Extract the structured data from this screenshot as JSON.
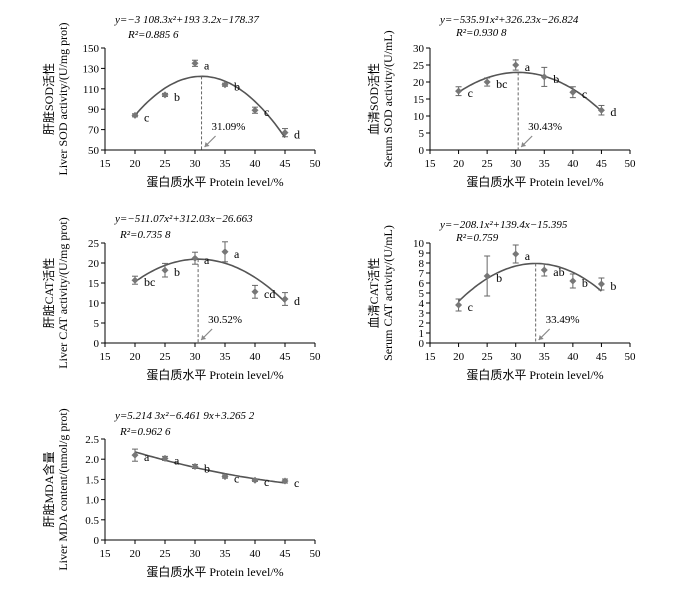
{
  "chart_data": [
    {
      "type": "scatter",
      "equation": "y=−3 108.3x²+193 3.2x−178.37",
      "r2_label": "R²=0.885 6",
      "optimum_label": "31.09%",
      "optimum_x": 31.09,
      "ylabel_cn": "肝脏SOD活性",
      "ylabel_en": "Liver SOD  activity/(U/mg prot)",
      "xlabel": "蛋白质水平  Protein level/%",
      "xlim": [
        15,
        50
      ],
      "ylim": [
        50,
        150
      ],
      "xticks": [
        "15",
        "20",
        "25",
        "30",
        "35",
        "40",
        "45",
        "50"
      ],
      "yticks": [
        "50",
        "70",
        "90",
        "110",
        "130",
        "150"
      ],
      "x": [
        20,
        25,
        30,
        35,
        40,
        45
      ],
      "values": [
        84,
        104,
        135,
        114,
        89,
        67
      ],
      "errors": [
        1.5,
        1.5,
        3,
        1.5,
        3,
        4
      ],
      "letters": [
        "c",
        "b",
        "a",
        "b",
        "c",
        "d"
      ],
      "curve": {
        "a": -0.31083,
        "b": 19.332,
        "c": -178.37
      }
    },
    {
      "type": "scatter",
      "equation": "y=−535.91x²+326.23x−26.824",
      "r2_label": "R²=0.930 8",
      "optimum_label": "30.43%",
      "optimum_x": 30.43,
      "ylabel_cn": "血清SOD活性",
      "ylabel_en": "Serum SOD  activity/(U/mL)",
      "xlabel": "蛋白质水平  Protein level/%",
      "xlim": [
        15,
        50
      ],
      "ylim": [
        0,
        30
      ],
      "xticks": [
        "15",
        "20",
        "25",
        "30",
        "35",
        "40",
        "45",
        "50"
      ],
      "yticks": [
        "0",
        "5",
        "10",
        "15",
        "20",
        "25",
        "30"
      ],
      "x": [
        20,
        25,
        30,
        35,
        40,
        45
      ],
      "values": [
        17.3,
        20,
        25,
        21.5,
        17,
        11.7
      ],
      "errors": [
        1.3,
        1.2,
        1.5,
        2.8,
        1.6,
        1.4
      ],
      "letters": [
        "c",
        "bc",
        "a",
        "b",
        "c",
        "d"
      ],
      "curve": {
        "a": -0.053591,
        "b": 3.2623,
        "c": -26.824
      }
    },
    {
      "type": "scatter",
      "equation": "y=−511.07x²+312.03x−26.663",
      "r2_label": "R²=0.735 8",
      "optimum_label": "30.52%",
      "optimum_x": 30.52,
      "ylabel_cn": "肝脏CAT活性",
      "ylabel_en": "Liver CAT  activity/(U/mg prot)",
      "xlabel": "蛋白质水平  Protein level/%",
      "xlim": [
        15,
        50
      ],
      "ylim": [
        0,
        25
      ],
      "xticks": [
        "15",
        "20",
        "25",
        "30",
        "35",
        "40",
        "45",
        "50"
      ],
      "yticks": [
        "0",
        "5",
        "10",
        "15",
        "20",
        "25"
      ],
      "x": [
        20,
        25,
        30,
        35,
        40,
        45
      ],
      "values": [
        15.7,
        18.2,
        21.2,
        22.8,
        12.8,
        11
      ],
      "errors": [
        1,
        1.7,
        1.5,
        2.5,
        1.6,
        1.6
      ],
      "letters": [
        "bc",
        "b",
        "a",
        "a",
        "cd",
        "d"
      ],
      "curve": {
        "a": -0.051107,
        "b": 3.1203,
        "c": -26.663
      }
    },
    {
      "type": "scatter",
      "equation": "y=−208.1x²+139.4x−15.395",
      "r2_label": "R²=0.759",
      "optimum_label": "33.49%",
      "optimum_x": 33.49,
      "ylabel_cn": "血清CAT活性",
      "ylabel_en": "Serum CAT  activity/(U/mL)",
      "xlabel": "蛋白质水平  Protein level/%",
      "xlim": [
        15,
        50
      ],
      "ylim": [
        0,
        10
      ],
      "xticks": [
        "15",
        "20",
        "25",
        "30",
        "35",
        "40",
        "45",
        "50"
      ],
      "yticks": [
        "0",
        "1",
        "2",
        "3",
        "4",
        "5",
        "6",
        "7",
        "8",
        "9",
        "10"
      ],
      "x": [
        20,
        25,
        30,
        35,
        40,
        45
      ],
      "values": [
        3.8,
        6.7,
        8.9,
        7.3,
        6.2,
        5.9
      ],
      "errors": [
        0.6,
        2.0,
        0.9,
        0.6,
        0.7,
        0.6
      ],
      "letters": [
        "c",
        "b",
        "a",
        "ab",
        "b",
        "b"
      ],
      "curve": {
        "a": -0.02081,
        "b": 1.394,
        "c": -15.395
      }
    },
    {
      "type": "scatter",
      "equation": "y=5.214 3x²−6.461 9x+3.265 2",
      "r2_label": "R²=0.962 6",
      "optimum_label": "",
      "ylabel_cn": "肝脏MDA含量",
      "ylabel_en": "Liver MDA content/(nmol/g prot)",
      "xlabel": "蛋白质水平  Protein level/%",
      "xlim": [
        15,
        50
      ],
      "ylim": [
        0,
        2.5
      ],
      "xticks": [
        "15",
        "20",
        "25",
        "30",
        "35",
        "40",
        "45",
        "50"
      ],
      "yticks": [
        "0",
        "0.5",
        "1.0",
        "1.5",
        "2.0",
        "2.5"
      ],
      "x": [
        20,
        25,
        30,
        35,
        40,
        45
      ],
      "values": [
        2.1,
        2.02,
        1.82,
        1.57,
        1.48,
        1.46
      ],
      "errors": [
        0.15,
        0.05,
        0.05,
        0.04,
        0.03,
        0.05
      ],
      "letters": [
        "a",
        "a",
        "b",
        "c",
        "c",
        "c"
      ],
      "curve": {
        "a": 0.00052143,
        "b": -0.064619,
        "c": 3.2652
      }
    }
  ]
}
